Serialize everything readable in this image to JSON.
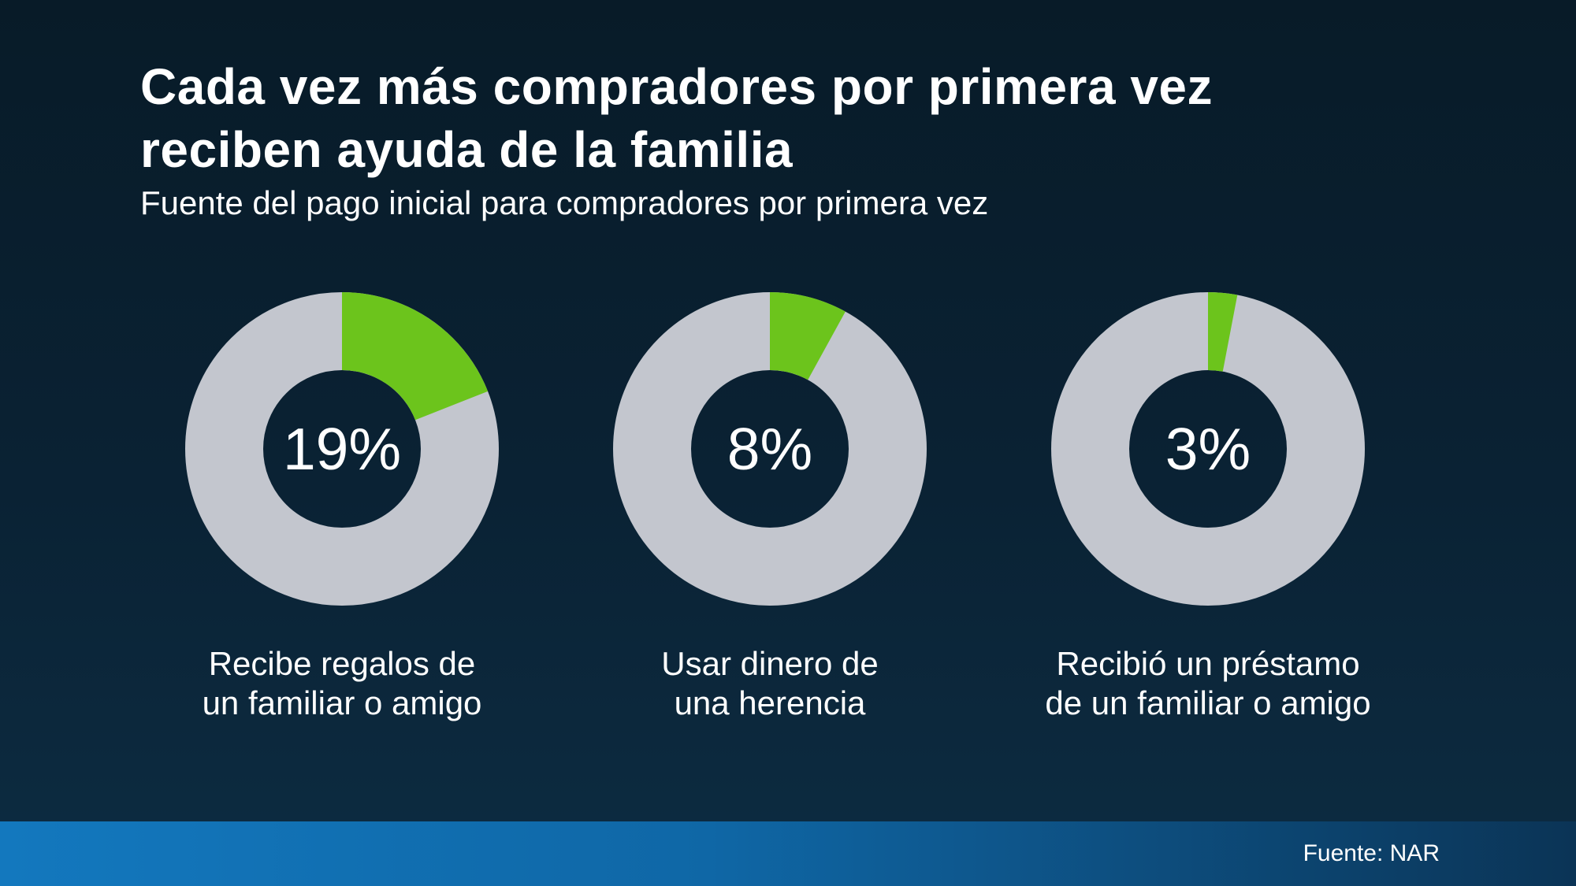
{
  "header": {
    "title_lines": [
      "Cada vez más compradores por primera vez",
      "reciben ayuda de la familia"
    ],
    "subtitle": "Fuente del pago inicial para compradores por primera vez"
  },
  "chart_data": {
    "type": "pie",
    "variant": "donut-multiples",
    "title": "Cada vez más compradores por primera vez reciben ayuda de la familia",
    "subtitle": "Fuente del pago inicial para compradores por primera vez",
    "start_angle_deg": 0,
    "direction": "clockwise",
    "donuts": [
      {
        "percent": 19,
        "value_label": "19%",
        "caption_lines": [
          "Recibe regalos de",
          "un familiar o amigo"
        ],
        "caption": "Recibe regalos de un familiar o amigo"
      },
      {
        "percent": 8,
        "value_label": "8%",
        "caption_lines": [
          "Usar dinero de",
          "una herencia"
        ],
        "caption": "Usar dinero de una herencia"
      },
      {
        "percent": 3,
        "value_label": "3%",
        "caption_lines": [
          "Recibió un préstamo",
          "de un familiar o amigo"
        ],
        "caption": "Recibió un préstamo de un familiar o amigo"
      }
    ],
    "colors": {
      "highlight": "#6cc41c",
      "remainder": "#c3c6ce",
      "background_top": "#081b28",
      "background_bottom": "#0d2c42",
      "footer_bar_left": "#1378be",
      "footer_bar_right": "#0b3456",
      "text": "#ffffff"
    }
  },
  "footer": {
    "source": "Fuente: NAR"
  }
}
